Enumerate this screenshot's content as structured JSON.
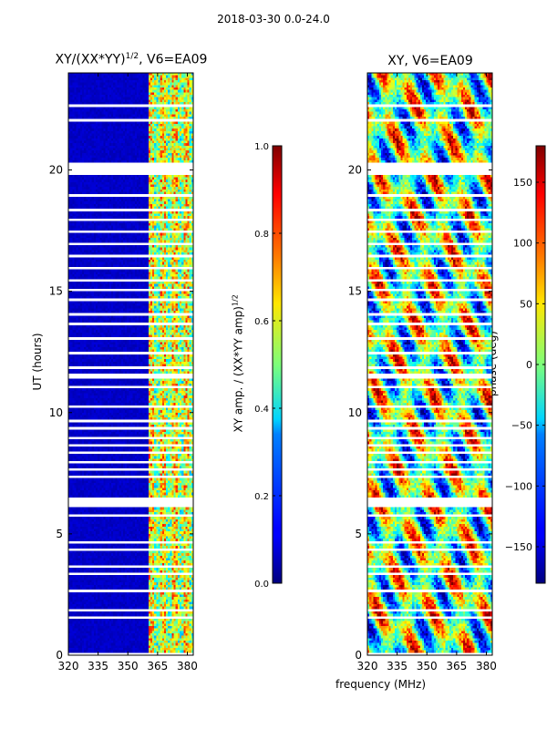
{
  "figure": {
    "suptitle": "2018-03-30 0.0-24.0",
    "shared_xlabel": "frequency (MHz)"
  },
  "chart_data": [
    {
      "type": "heatmap",
      "title": "XY/(XX*YY)",
      "title_sup": "1/2",
      "title_suffix": ", V6=EA09",
      "xlabel": "",
      "ylabel": "UT (hours)",
      "xlim": [
        320,
        383
      ],
      "ylim": [
        0,
        24
      ],
      "xticks": [
        320,
        335,
        350,
        365,
        380
      ],
      "yticks": [
        0,
        5,
        10,
        15,
        20
      ],
      "quantity": "amplitude",
      "colorbar": {
        "label": "XY amp. / (XX*YY amp)",
        "label_sup": "1/2",
        "range": [
          0.0,
          1.0
        ],
        "ticks": [
          "0.0",
          "0.2",
          "0.4",
          "0.6",
          "0.8",
          "1.0"
        ],
        "tick_values": [
          0.0,
          0.2,
          0.4,
          0.6,
          0.8,
          1.0
        ],
        "colormap": "jet"
      },
      "flagged_channels_MHz": [
        320,
        360
      ],
      "description_values": {
        "flagged_level": 0.05,
        "band_level_range": [
          0.3,
          0.85
        ]
      }
    },
    {
      "type": "heatmap",
      "title": "XY, V6=EA09",
      "xlabel": "",
      "ylabel": "",
      "xlim": [
        320,
        383
      ],
      "ylim": [
        0,
        24
      ],
      "xticks": [
        320,
        335,
        350,
        365,
        380
      ],
      "yticks": [
        0,
        5,
        10,
        15,
        20
      ],
      "quantity": "phase",
      "colorbar": {
        "label": "phase (deg)",
        "range": [
          -180,
          180
        ],
        "ticks": [
          "−150",
          "−100",
          "−50",
          "0",
          "50",
          "100",
          "150"
        ],
        "tick_values": [
          -150,
          -100,
          -50,
          0,
          50,
          100,
          150
        ],
        "colormap": "jet"
      }
    }
  ],
  "gaps_UT_hours": [
    [
      0.05,
      0.12
    ],
    [
      0.45,
      0.5
    ],
    [
      0.95,
      1.02
    ],
    [
      1.55,
      1.62
    ],
    [
      1.82,
      1.88
    ],
    [
      2.62,
      2.68
    ],
    [
      2.95,
      3.0
    ],
    [
      3.3,
      3.36
    ],
    [
      3.62,
      3.68
    ],
    [
      3.95,
      4.0
    ],
    [
      4.3,
      4.36
    ],
    [
      4.62,
      4.7
    ],
    [
      5.28,
      5.34
    ],
    [
      5.75,
      5.82
    ],
    [
      6.1,
      6.55
    ],
    [
      7.3,
      7.36
    ],
    [
      7.6,
      7.66
    ],
    [
      7.9,
      7.96
    ],
    [
      8.3,
      8.36
    ],
    [
      8.6,
      8.66
    ],
    [
      8.9,
      8.96
    ],
    [
      9.3,
      9.36
    ],
    [
      9.65,
      9.72
    ],
    [
      10.2,
      10.3
    ],
    [
      11.0,
      11.1
    ],
    [
      11.4,
      11.55
    ],
    [
      11.85,
      11.92
    ],
    [
      12.4,
      12.46
    ],
    [
      13.05,
      13.1
    ],
    [
      13.6,
      13.66
    ],
    [
      14.0,
      14.06
    ],
    [
      14.6,
      14.66
    ],
    [
      15.0,
      15.06
    ],
    [
      15.4,
      15.46
    ],
    [
      15.9,
      15.96
    ],
    [
      16.4,
      16.46
    ],
    [
      16.95,
      17.0
    ],
    [
      17.4,
      17.46
    ],
    [
      17.9,
      17.96
    ],
    [
      18.3,
      18.36
    ],
    [
      18.95,
      19.0
    ],
    [
      19.8,
      20.3
    ],
    [
      22.05,
      22.12
    ],
    [
      22.65,
      22.72
    ]
  ]
}
